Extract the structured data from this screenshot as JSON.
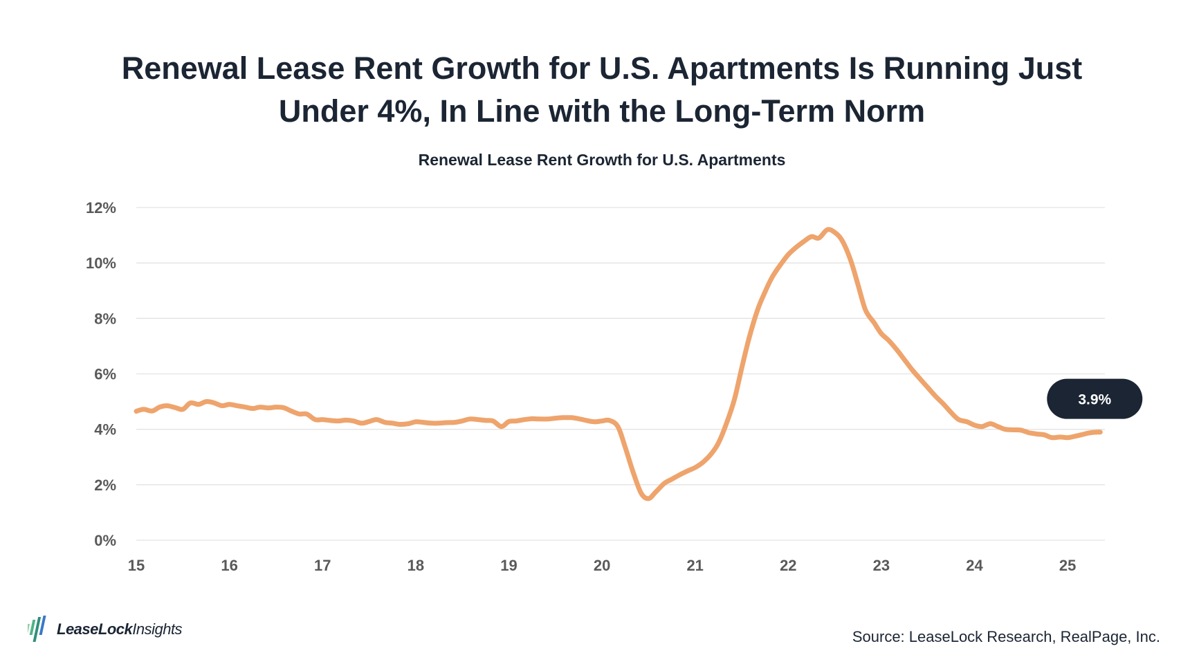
{
  "headline": {
    "line1": "Renewal Lease Rent Growth for U.S. Apartments Is Running Just",
    "line2": "Under 4%, In Line with the Long-Term Norm"
  },
  "logo": {
    "brand": "LeaseLock",
    "suffix": "Insights"
  },
  "source": "Source: LeaseLock Research, RealPage, Inc.",
  "colors": {
    "line": "#eea46c",
    "grid": "#e3e3e3",
    "callout_bg": "#1b2533",
    "callout_text": "#ffffff",
    "axis_text": "#595959"
  },
  "chart_data": {
    "type": "line",
    "title": "Renewal Lease Rent Growth for U.S. Apartments",
    "xlabel": "",
    "ylabel": "",
    "xlim": [
      15,
      25.4
    ],
    "ylim": [
      0,
      12
    ],
    "x_ticks": [
      15,
      16,
      17,
      18,
      19,
      20,
      21,
      22,
      23,
      24,
      25
    ],
    "x_tick_labels": [
      "15",
      "16",
      "17",
      "18",
      "19",
      "20",
      "21",
      "22",
      "23",
      "24",
      "25"
    ],
    "y_ticks": [
      0,
      2,
      4,
      6,
      8,
      10,
      12
    ],
    "y_tick_labels": [
      "0%",
      "2%",
      "4%",
      "6%",
      "8%",
      "10%",
      "12%"
    ],
    "grid": true,
    "legend": "none",
    "callout": {
      "label": "3.9%",
      "x": 25.35,
      "y": 3.9
    },
    "series": [
      {
        "color": "#eea46c",
        "points": [
          [
            15.0,
            4.65
          ],
          [
            15.08,
            4.72
          ],
          [
            15.17,
            4.66
          ],
          [
            15.25,
            4.8
          ],
          [
            15.33,
            4.85
          ],
          [
            15.42,
            4.78
          ],
          [
            15.5,
            4.72
          ],
          [
            15.58,
            4.95
          ],
          [
            15.67,
            4.9
          ],
          [
            15.75,
            5.0
          ],
          [
            15.83,
            4.96
          ],
          [
            15.92,
            4.85
          ],
          [
            16.0,
            4.9
          ],
          [
            16.08,
            4.85
          ],
          [
            16.17,
            4.8
          ],
          [
            16.25,
            4.75
          ],
          [
            16.33,
            4.8
          ],
          [
            16.42,
            4.77
          ],
          [
            16.5,
            4.8
          ],
          [
            16.58,
            4.78
          ],
          [
            16.67,
            4.65
          ],
          [
            16.75,
            4.55
          ],
          [
            16.83,
            4.55
          ],
          [
            16.92,
            4.35
          ],
          [
            17.0,
            4.35
          ],
          [
            17.08,
            4.32
          ],
          [
            17.17,
            4.3
          ],
          [
            17.25,
            4.33
          ],
          [
            17.33,
            4.3
          ],
          [
            17.42,
            4.22
          ],
          [
            17.5,
            4.28
          ],
          [
            17.58,
            4.35
          ],
          [
            17.67,
            4.25
          ],
          [
            17.75,
            4.22
          ],
          [
            17.83,
            4.18
          ],
          [
            17.92,
            4.2
          ],
          [
            18.0,
            4.27
          ],
          [
            18.08,
            4.25
          ],
          [
            18.17,
            4.22
          ],
          [
            18.25,
            4.22
          ],
          [
            18.33,
            4.24
          ],
          [
            18.42,
            4.25
          ],
          [
            18.5,
            4.3
          ],
          [
            18.58,
            4.37
          ],
          [
            18.67,
            4.35
          ],
          [
            18.75,
            4.32
          ],
          [
            18.83,
            4.3
          ],
          [
            18.92,
            4.1
          ],
          [
            19.0,
            4.28
          ],
          [
            19.08,
            4.3
          ],
          [
            19.17,
            4.35
          ],
          [
            19.25,
            4.38
          ],
          [
            19.33,
            4.37
          ],
          [
            19.42,
            4.37
          ],
          [
            19.5,
            4.4
          ],
          [
            19.58,
            4.42
          ],
          [
            19.67,
            4.42
          ],
          [
            19.75,
            4.38
          ],
          [
            19.83,
            4.32
          ],
          [
            19.92,
            4.27
          ],
          [
            20.0,
            4.3
          ],
          [
            20.08,
            4.32
          ],
          [
            20.17,
            4.1
          ],
          [
            20.25,
            3.35
          ],
          [
            20.33,
            2.5
          ],
          [
            20.42,
            1.7
          ],
          [
            20.5,
            1.5
          ],
          [
            20.58,
            1.75
          ],
          [
            20.67,
            2.05
          ],
          [
            20.75,
            2.2
          ],
          [
            20.83,
            2.35
          ],
          [
            20.92,
            2.5
          ],
          [
            21.0,
            2.62
          ],
          [
            21.08,
            2.8
          ],
          [
            21.17,
            3.1
          ],
          [
            21.25,
            3.5
          ],
          [
            21.33,
            4.15
          ],
          [
            21.42,
            5.05
          ],
          [
            21.5,
            6.2
          ],
          [
            21.58,
            7.3
          ],
          [
            21.67,
            8.3
          ],
          [
            21.75,
            8.95
          ],
          [
            21.83,
            9.5
          ],
          [
            21.92,
            9.95
          ],
          [
            22.0,
            10.3
          ],
          [
            22.08,
            10.55
          ],
          [
            22.17,
            10.78
          ],
          [
            22.25,
            10.95
          ],
          [
            22.33,
            10.9
          ],
          [
            22.42,
            11.2
          ],
          [
            22.5,
            11.1
          ],
          [
            22.58,
            10.8
          ],
          [
            22.67,
            10.1
          ],
          [
            22.75,
            9.2
          ],
          [
            22.83,
            8.3
          ],
          [
            22.92,
            7.85
          ],
          [
            23.0,
            7.45
          ],
          [
            23.08,
            7.2
          ],
          [
            23.17,
            6.85
          ],
          [
            23.25,
            6.5
          ],
          [
            23.33,
            6.15
          ],
          [
            23.42,
            5.8
          ],
          [
            23.5,
            5.5
          ],
          [
            23.58,
            5.2
          ],
          [
            23.67,
            4.9
          ],
          [
            23.75,
            4.6
          ],
          [
            23.83,
            4.35
          ],
          [
            23.92,
            4.27
          ],
          [
            24.0,
            4.15
          ],
          [
            24.08,
            4.1
          ],
          [
            24.17,
            4.2
          ],
          [
            24.25,
            4.1
          ],
          [
            24.33,
            4.0
          ],
          [
            24.42,
            3.98
          ],
          [
            24.5,
            3.97
          ],
          [
            24.58,
            3.88
          ],
          [
            24.67,
            3.83
          ],
          [
            24.75,
            3.8
          ],
          [
            24.83,
            3.7
          ],
          [
            24.92,
            3.72
          ],
          [
            25.0,
            3.7
          ],
          [
            25.08,
            3.75
          ],
          [
            25.17,
            3.82
          ],
          [
            25.25,
            3.88
          ],
          [
            25.35,
            3.9
          ]
        ]
      }
    ]
  }
}
